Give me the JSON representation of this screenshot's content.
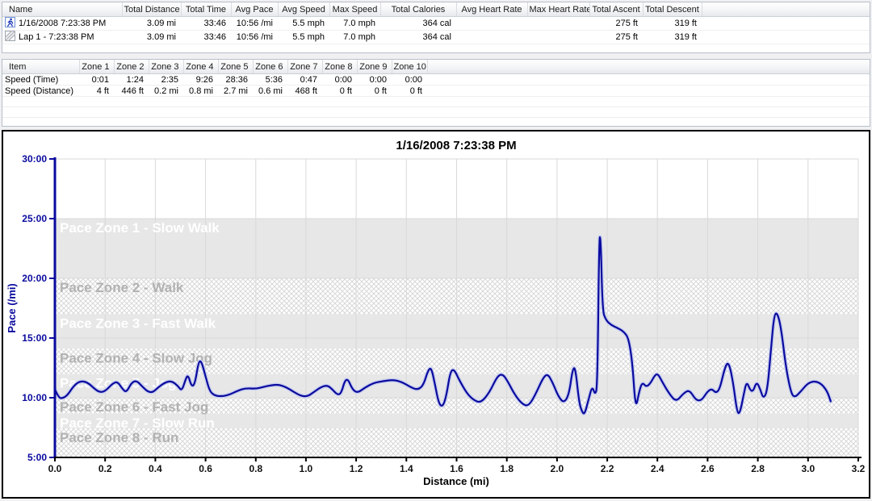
{
  "session_table": {
    "columns": [
      "Name",
      "Total Distance",
      "Total Time",
      "Avg Pace",
      "Avg Speed",
      "Max Speed",
      "Total Calories",
      "Avg Heart Rate",
      "Max Heart Rate",
      "Total Ascent",
      "Total Descent"
    ],
    "rows": [
      {
        "icon": "runner-icon",
        "name": "1/16/2008 7:23:38 PM",
        "values": [
          "3.09 mi",
          "33:46",
          "10:56 /mi",
          "5.5 mph",
          "7.0 mph",
          "364 cal",
          "",
          "",
          "275 ft",
          "319 ft"
        ]
      },
      {
        "icon": "lap-icon",
        "name": "Lap 1 - 7:23:38 PM",
        "values": [
          "3.09 mi",
          "33:46",
          "10:56 /mi",
          "5.5 mph",
          "7.0 mph",
          "364 cal",
          "",
          "",
          "275 ft",
          "319 ft"
        ]
      }
    ]
  },
  "zone_table": {
    "columns": [
      "Item",
      "Zone 1",
      "Zone 2",
      "Zone 3",
      "Zone 4",
      "Zone 5",
      "Zone 6",
      "Zone 7",
      "Zone 8",
      "Zone 9",
      "Zone 10"
    ],
    "rows": [
      {
        "name": "Speed (Time)",
        "values": [
          "0:01",
          "1:24",
          "2:35",
          "9:26",
          "28:36",
          "5:36",
          "0:47",
          "0:00",
          "0:00",
          "0:00"
        ]
      },
      {
        "name": "Speed (Distance)",
        "values": [
          "4 ft",
          "446 ft",
          "0.2 mi",
          "0.8 mi",
          "2.7 mi",
          "0.6 mi",
          "468 ft",
          "0 ft",
          "0 ft",
          "0 ft"
        ]
      }
    ]
  },
  "colors": {
    "series_navy": "#0a0a9e",
    "series_halo": "#c9cfee",
    "grid": "#d9d9d9",
    "band_solid": "#e7e7e7",
    "hatch_line": "#d8d8d8",
    "zone_label_on_solid": "#ffffff",
    "zone_label_on_hatch": "#b2b2b2",
    "x_axis": "#000000"
  },
  "chart_data": {
    "type": "line",
    "title": "1/16/2008 7:23:38 PM",
    "xlabel": "Distance (mi)",
    "ylabel": "Pace (/mi)",
    "xlim": [
      0,
      3.2
    ],
    "ylim_pace_min": [
      5,
      30
    ],
    "grid": "on",
    "x_ticks": [
      "0.0",
      "0.2",
      "0.4",
      "0.6",
      "0.8",
      "1.0",
      "1.2",
      "1.4",
      "1.6",
      "1.8",
      "2.0",
      "2.2",
      "2.4",
      "2.6",
      "2.8",
      "3.0",
      "3.2"
    ],
    "y_ticks": [
      {
        "label": "30:00",
        "value": 30
      },
      {
        "label": "25:00",
        "value": 25
      },
      {
        "label": "20:00",
        "value": 20
      },
      {
        "label": "15:00",
        "value": 15
      },
      {
        "label": "10:00",
        "value": 10
      },
      {
        "label": "5:00",
        "value": 5
      }
    ],
    "zones": [
      {
        "label": "Pace Zone 1 - Slow Walk",
        "from": 25,
        "to": 20,
        "style": "solid"
      },
      {
        "label": "Pace Zone 2 - Walk",
        "from": 20,
        "to": 17,
        "style": "hatch"
      },
      {
        "label": "Pace Zone 3 - Fast Walk",
        "from": 17,
        "to": 14.1,
        "style": "solid"
      },
      {
        "label": "Pace Zone 4 - Slow Jog",
        "from": 14.1,
        "to": 12,
        "style": "hatch"
      },
      {
        "label": "Pace Zone 5 - Jog",
        "from": 12,
        "to": 10,
        "style": "solid"
      },
      {
        "label": "Pace Zone 6 - Fast Jog",
        "from": 10,
        "to": 8.65,
        "style": "hatch"
      },
      {
        "label": "Pace Zone 7 - Slow Run",
        "from": 8.65,
        "to": 7.43,
        "style": "solid"
      },
      {
        "label": "Pace Zone 8 - Run",
        "from": 7.43,
        "to": 5,
        "style": "hatch"
      }
    ],
    "series": [
      {
        "name": "Pace",
        "points": [
          [
            0.0,
            10.7
          ],
          [
            0.015,
            10.0
          ],
          [
            0.03,
            9.95
          ],
          [
            0.05,
            10.2
          ],
          [
            0.075,
            11.0
          ],
          [
            0.1,
            11.4
          ],
          [
            0.13,
            11.3
          ],
          [
            0.16,
            10.7
          ],
          [
            0.18,
            10.45
          ],
          [
            0.2,
            10.55
          ],
          [
            0.23,
            11.2
          ],
          [
            0.25,
            11.35
          ],
          [
            0.27,
            10.7
          ],
          [
            0.285,
            10.45
          ],
          [
            0.305,
            11.25
          ],
          [
            0.325,
            11.45
          ],
          [
            0.35,
            10.9
          ],
          [
            0.37,
            10.5
          ],
          [
            0.39,
            10.45
          ],
          [
            0.41,
            10.85
          ],
          [
            0.44,
            11.3
          ],
          [
            0.465,
            11.4
          ],
          [
            0.49,
            11.0
          ],
          [
            0.505,
            10.55
          ],
          [
            0.52,
            11.5
          ],
          [
            0.53,
            11.95
          ],
          [
            0.545,
            10.9
          ],
          [
            0.558,
            11.2
          ],
          [
            0.572,
            13.0
          ],
          [
            0.583,
            13.1
          ],
          [
            0.6,
            11.8
          ],
          [
            0.617,
            10.5
          ],
          [
            0.64,
            10.15
          ],
          [
            0.67,
            10.12
          ],
          [
            0.7,
            10.3
          ],
          [
            0.73,
            10.6
          ],
          [
            0.76,
            10.8
          ],
          [
            0.8,
            10.75
          ],
          [
            0.83,
            10.9
          ],
          [
            0.86,
            11.05
          ],
          [
            0.89,
            11.1
          ],
          [
            0.92,
            10.9
          ],
          [
            0.95,
            10.5
          ],
          [
            0.98,
            10.15
          ],
          [
            1.005,
            10.1
          ],
          [
            1.03,
            10.45
          ],
          [
            1.06,
            10.9
          ],
          [
            1.085,
            11.05
          ],
          [
            1.105,
            10.7
          ],
          [
            1.125,
            10.25
          ],
          [
            1.14,
            10.35
          ],
          [
            1.155,
            11.45
          ],
          [
            1.168,
            11.55
          ],
          [
            1.185,
            10.7
          ],
          [
            1.205,
            10.4
          ],
          [
            1.235,
            10.85
          ],
          [
            1.27,
            11.25
          ],
          [
            1.31,
            11.4
          ],
          [
            1.35,
            11.5
          ],
          [
            1.385,
            11.3
          ],
          [
            1.415,
            10.9
          ],
          [
            1.445,
            10.65
          ],
          [
            1.468,
            11.05
          ],
          [
            1.487,
            12.35
          ],
          [
            1.5,
            12.5
          ],
          [
            1.515,
            11.0
          ],
          [
            1.528,
            9.6
          ],
          [
            1.543,
            9.2
          ],
          [
            1.558,
            10.0
          ],
          [
            1.575,
            12.2
          ],
          [
            1.59,
            12.4
          ],
          [
            1.61,
            11.5
          ],
          [
            1.64,
            10.4
          ],
          [
            1.665,
            9.85
          ],
          [
            1.695,
            9.55
          ],
          [
            1.73,
            10.4
          ],
          [
            1.762,
            11.8
          ],
          [
            1.783,
            12.0
          ],
          [
            1.803,
            11.4
          ],
          [
            1.833,
            10.2
          ],
          [
            1.862,
            9.45
          ],
          [
            1.887,
            9.3
          ],
          [
            1.915,
            10.3
          ],
          [
            1.945,
            11.7
          ],
          [
            1.963,
            12.0
          ],
          [
            1.982,
            11.3
          ],
          [
            2.005,
            10.1
          ],
          [
            2.028,
            9.55
          ],
          [
            2.048,
            10.3
          ],
          [
            2.062,
            12.4
          ],
          [
            2.073,
            12.55
          ],
          [
            2.088,
            9.6
          ],
          [
            2.1,
            8.8
          ],
          [
            2.11,
            8.6
          ],
          [
            2.125,
            9.8
          ],
          [
            2.14,
            11.0
          ],
          [
            2.152,
            10.2
          ],
          [
            2.161,
            11.0
          ],
          [
            2.168,
            23.45
          ],
          [
            2.174,
            23.45
          ],
          [
            2.181,
            17.3
          ],
          [
            2.195,
            16.5
          ],
          [
            2.215,
            16.1
          ],
          [
            2.24,
            15.85
          ],
          [
            2.265,
            15.55
          ],
          [
            2.285,
            15.0
          ],
          [
            2.3,
            13.0
          ],
          [
            2.313,
            8.95
          ],
          [
            2.328,
            10.6
          ],
          [
            2.34,
            11.3
          ],
          [
            2.355,
            10.9
          ],
          [
            2.372,
            11.2
          ],
          [
            2.39,
            11.9
          ],
          [
            2.402,
            12.0
          ],
          [
            2.42,
            11.3
          ],
          [
            2.448,
            10.3
          ],
          [
            2.475,
            9.65
          ],
          [
            2.505,
            10.4
          ],
          [
            2.528,
            10.65
          ],
          [
            2.553,
            9.8
          ],
          [
            2.575,
            9.75
          ],
          [
            2.6,
            10.55
          ],
          [
            2.617,
            10.75
          ],
          [
            2.632,
            10.4
          ],
          [
            2.648,
            10.7
          ],
          [
            2.668,
            12.5
          ],
          [
            2.683,
            13.05
          ],
          [
            2.7,
            11.5
          ],
          [
            2.717,
            8.8
          ],
          [
            2.728,
            8.65
          ],
          [
            2.743,
            10.2
          ],
          [
            2.755,
            11.4
          ],
          [
            2.77,
            10.6
          ],
          [
            2.782,
            10.55
          ],
          [
            2.795,
            11.35
          ],
          [
            2.81,
            10.7
          ],
          [
            2.822,
            9.9
          ],
          [
            2.838,
            10.6
          ],
          [
            2.852,
            14.0
          ],
          [
            2.865,
            17.0
          ],
          [
            2.878,
            17.1
          ],
          [
            2.893,
            15.8
          ],
          [
            2.912,
            12.5
          ],
          [
            2.932,
            10.4
          ],
          [
            2.947,
            10.0
          ],
          [
            2.972,
            10.55
          ],
          [
            3.0,
            11.25
          ],
          [
            3.03,
            11.4
          ],
          [
            3.057,
            11.1
          ],
          [
            3.077,
            10.5
          ],
          [
            3.09,
            9.7
          ]
        ]
      }
    ]
  }
}
